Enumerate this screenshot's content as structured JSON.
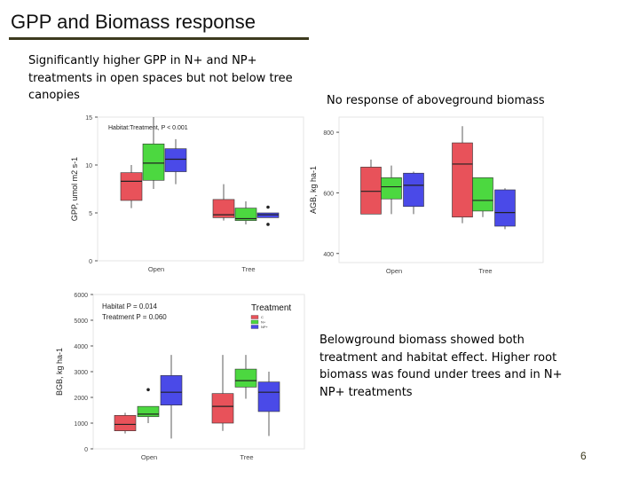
{
  "slide": {
    "title": "GPP and Biomass response",
    "text_gpp": "Significantly higher GPP in N+ and NP+ treatments in open spaces but not below tree canopies",
    "text_agb": "No response of aboveground biomass",
    "text_bgb": "Belowground biomass showed both treatment and habitat effect. Higher root biomass was found under trees and in N+ NP+ treatments",
    "page_number": "6"
  },
  "colors": {
    "C": "#e8525a",
    "N+": "#4cd840",
    "NP+": "#4a4ae8",
    "title_rule": "#3d3a1e"
  },
  "chart_data": [
    {
      "type": "box",
      "annotation": "Habitat:Treatment, P < 0.001",
      "xlabel": "",
      "ylabel": "GPP, umol m2 s-1",
      "ylim": [
        0,
        15
      ],
      "yticks": [
        0,
        5,
        10,
        15
      ],
      "categories": [
        "Open",
        "Tree"
      ],
      "series_names": [
        "C",
        "N+",
        "NP+"
      ],
      "boxes": [
        {
          "category": "Open",
          "treatment": "C",
          "whisker_low": 5.5,
          "q1": 6.3,
          "median": 8.3,
          "q3": 9.2,
          "whisker_high": 10.0
        },
        {
          "category": "Open",
          "treatment": "N+",
          "whisker_low": 7.5,
          "q1": 8.4,
          "median": 10.2,
          "q3": 12.2,
          "whisker_high": 15.0
        },
        {
          "category": "Open",
          "treatment": "NP+",
          "whisker_low": 8.0,
          "q1": 9.3,
          "median": 10.6,
          "q3": 11.7,
          "whisker_high": 12.7
        },
        {
          "category": "Tree",
          "treatment": "C",
          "whisker_low": 4.2,
          "q1": 4.5,
          "median": 4.8,
          "q3": 6.4,
          "whisker_high": 8.0
        },
        {
          "category": "Tree",
          "treatment": "N+",
          "whisker_low": 3.8,
          "q1": 4.2,
          "median": 4.4,
          "q3": 5.5,
          "whisker_high": 6.2
        },
        {
          "category": "Tree",
          "treatment": "NP+",
          "whisker_low": 4.5,
          "q1": 4.5,
          "median": 4.8,
          "q3": 5.0,
          "whisker_high": 5.0,
          "outliers": [
            5.6,
            3.8
          ]
        }
      ]
    },
    {
      "type": "box",
      "annotation": "",
      "xlabel": "",
      "ylabel": "AGB, kg ha-1",
      "ylim": [
        370,
        850
      ],
      "yticks": [
        400,
        600,
        800
      ],
      "categories": [
        "Open",
        "Tree"
      ],
      "series_names": [
        "C",
        "N+",
        "NP+"
      ],
      "boxes": [
        {
          "category": "Open",
          "treatment": "C",
          "whisker_low": 530,
          "q1": 530,
          "median": 605,
          "q3": 685,
          "whisker_high": 710
        },
        {
          "category": "Open",
          "treatment": "N+",
          "whisker_low": 530,
          "q1": 580,
          "median": 620,
          "q3": 650,
          "whisker_high": 690
        },
        {
          "category": "Open",
          "treatment": "NP+",
          "whisker_low": 530,
          "q1": 555,
          "median": 625,
          "q3": 665,
          "whisker_high": 670
        },
        {
          "category": "Tree",
          "treatment": "C",
          "whisker_low": 500,
          "q1": 520,
          "median": 695,
          "q3": 765,
          "whisker_high": 820
        },
        {
          "category": "Tree",
          "treatment": "N+",
          "whisker_low": 520,
          "q1": 540,
          "median": 575,
          "q3": 650,
          "whisker_high": 650
        },
        {
          "category": "Tree",
          "treatment": "NP+",
          "whisker_low": 480,
          "q1": 490,
          "median": 535,
          "q3": 610,
          "whisker_high": 615
        }
      ]
    },
    {
      "type": "box",
      "annotation": "Habitat  P = 0.014",
      "annotation_2": "Treatment  P = 0.060",
      "legend_title": "Treatment",
      "legend_position": "top-right",
      "xlabel": "",
      "ylabel": "BGB, kg ha-1",
      "ylim": [
        0,
        6000
      ],
      "yticks": [
        0,
        1000,
        2000,
        3000,
        4000,
        5000,
        6000
      ],
      "categories": [
        "Open",
        "Tree"
      ],
      "series_names": [
        "C",
        "N+",
        "NP+"
      ],
      "boxes": [
        {
          "category": "Open",
          "treatment": "C",
          "whisker_low": 600,
          "q1": 700,
          "median": 950,
          "q3": 1300,
          "whisker_high": 1400
        },
        {
          "category": "Open",
          "treatment": "N+",
          "whisker_low": 1000,
          "q1": 1250,
          "median": 1350,
          "q3": 1650,
          "whisker_high": 1650,
          "outliers": [
            2300
          ]
        },
        {
          "category": "Open",
          "treatment": "NP+",
          "whisker_low": 400,
          "q1": 1700,
          "median": 2200,
          "q3": 2850,
          "whisker_high": 3650
        },
        {
          "category": "Tree",
          "treatment": "C",
          "whisker_low": 700,
          "q1": 1000,
          "median": 1650,
          "q3": 2150,
          "whisker_high": 3650
        },
        {
          "category": "Tree",
          "treatment": "N+",
          "whisker_low": 1950,
          "q1": 2400,
          "median": 2650,
          "q3": 3100,
          "whisker_high": 3650
        },
        {
          "category": "Tree",
          "treatment": "NP+",
          "whisker_low": 500,
          "q1": 1450,
          "median": 2200,
          "q3": 2600,
          "whisker_high": 3000
        }
      ]
    }
  ]
}
